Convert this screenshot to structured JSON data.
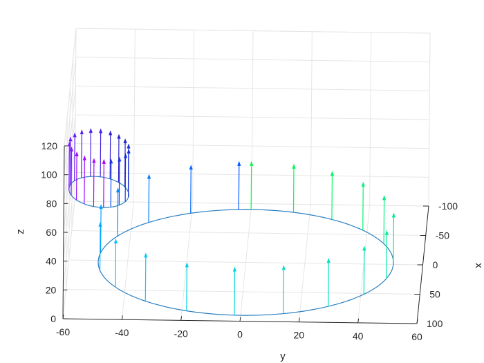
{
  "chart_data": {
    "type": "3d-line-quiver",
    "title": "",
    "xlabel": "x",
    "ylabel": "y",
    "zlabel": "z",
    "xlim": [
      -100,
      100
    ],
    "ylim": [
      -60,
      60
    ],
    "zlim": [
      0,
      120
    ],
    "x_ticks": [
      "-100",
      "-50",
      "0",
      "50",
      "100"
    ],
    "y_ticks": [
      "-60",
      "-40",
      "-20",
      "0",
      "20",
      "40",
      "60"
    ],
    "z_ticks": [
      "0",
      "20",
      "40",
      "60",
      "80",
      "100",
      "120"
    ],
    "grid": true,
    "curve_color": "#2a7fc1",
    "colormap": [
      "#00ff40",
      "#00e8b0",
      "#00c8ff",
      "#0050ff",
      "#2020c8",
      "#7020ff",
      "#b000ff"
    ],
    "stem_height": 14,
    "loop1": {
      "center_x": 0,
      "center_y": 0,
      "x_radius": 90,
      "y_radius": 50,
      "z": 0
    },
    "loop2": {
      "center_x": 0,
      "center_y": -50,
      "x_radius": 90,
      "y_radius": 10,
      "z_base": 0,
      "z_peak": 95
    },
    "stem_t": [
      0.0,
      0.07,
      0.14,
      0.21,
      0.28,
      0.36,
      0.44,
      0.52,
      0.6,
      0.68,
      0.76,
      0.84,
      0.92,
      1.0,
      1.08,
      1.16,
      1.24,
      1.32,
      1.4,
      1.48,
      1.56,
      1.64,
      1.72,
      1.8,
      1.88,
      1.96,
      2.04,
      2.12,
      2.2,
      2.28,
      2.36,
      2.44,
      2.52,
      2.6,
      2.68,
      2.76,
      2.84,
      2.92,
      3.0
    ]
  }
}
